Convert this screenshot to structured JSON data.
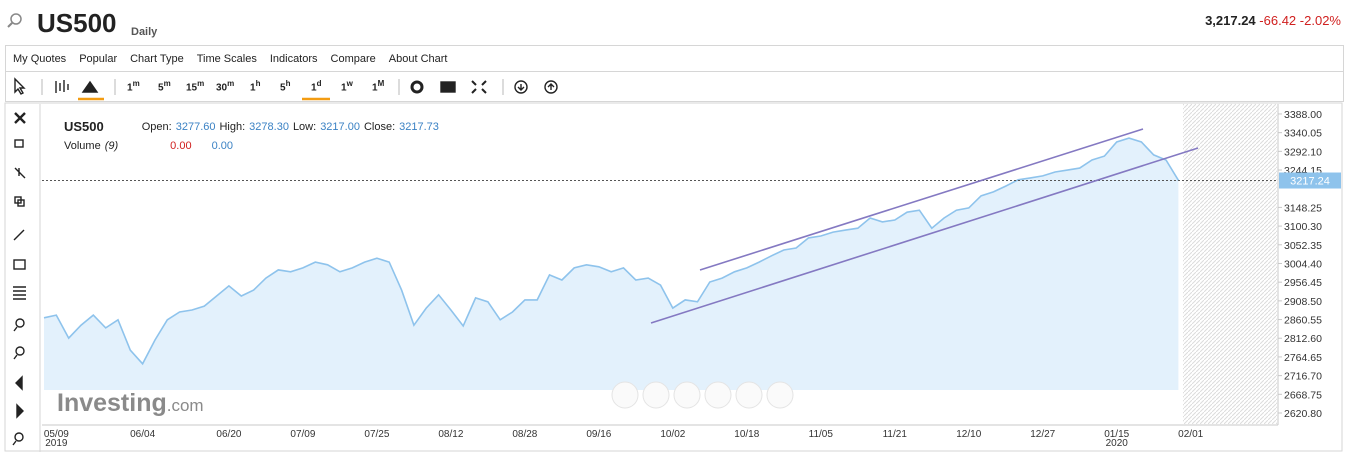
{
  "header": {
    "symbol": "US500",
    "interval": "Daily",
    "price": "3,217.24",
    "change": "-66.42",
    "change_pct": "-2.02%"
  },
  "menu": [
    "My Quotes",
    "Popular",
    "Chart Type",
    "Time Scales",
    "Indicators",
    "Compare",
    "About Chart"
  ],
  "toolbar": {
    "intervals": [
      {
        "n": "1",
        "u": "m"
      },
      {
        "n": "5",
        "u": "m"
      },
      {
        "n": "15",
        "u": "m"
      },
      {
        "n": "30",
        "u": "m"
      },
      {
        "n": "1",
        "u": "h"
      },
      {
        "n": "5",
        "u": "h"
      },
      {
        "n": "1",
        "u": "d"
      },
      {
        "n": "1",
        "u": "w"
      },
      {
        "n": "1",
        "u": "M"
      }
    ]
  },
  "info": {
    "symbol": "US500",
    "open_label": "Open:",
    "open": "3277.60",
    "high_label": "High:",
    "high": "3278.30",
    "low_label": "Low:",
    "low": "3217.00",
    "close_label": "Close:",
    "close": "3217.73",
    "volume_label": "Volume",
    "volume_period": "(9)",
    "volume_change": "0.00",
    "volume_value": "0.00"
  },
  "watermark": {
    "brand": "Investing",
    "suffix": ".com"
  },
  "chart_data": {
    "type": "area",
    "color": "#8ec3ec",
    "fill": "#e3f1fc",
    "categories": [
      null,
      "05/09",
      null,
      null,
      null,
      null,
      null,
      null,
      "06/04",
      null,
      null,
      null,
      null,
      null,
      null,
      "06/20",
      null,
      null,
      null,
      null,
      null,
      "07/09",
      null,
      null,
      null,
      null,
      null,
      "07/25",
      null,
      null,
      null,
      null,
      null,
      "08/12",
      null,
      null,
      null,
      null,
      null,
      "08/28",
      null,
      null,
      null,
      null,
      null,
      "09/16",
      null,
      null,
      null,
      null,
      null,
      "10/02",
      null,
      null,
      null,
      null,
      null,
      "10/18",
      null,
      null,
      null,
      null,
      null,
      "11/05",
      null,
      null,
      null,
      null,
      null,
      "11/21",
      null,
      null,
      null,
      null,
      null,
      "12/10",
      null,
      null,
      null,
      null,
      null,
      "12/27",
      null,
      null,
      null,
      null,
      null,
      "01/15",
      null,
      null,
      null,
      null,
      null,
      "02/01"
    ],
    "category_years": [
      null,
      "2019",
      null,
      null,
      null,
      null,
      null,
      null,
      null,
      null,
      null,
      null,
      null,
      null,
      null,
      null,
      null,
      null,
      null,
      null,
      null,
      null,
      null,
      null,
      null,
      null,
      null,
      null,
      null,
      null,
      null,
      null,
      null,
      null,
      null,
      null,
      null,
      null,
      null,
      null,
      null,
      null,
      null,
      null,
      null,
      null,
      null,
      null,
      null,
      null,
      null,
      null,
      null,
      null,
      null,
      null,
      null,
      null,
      null,
      null,
      null,
      null,
      null,
      null,
      null,
      null,
      null,
      null,
      null,
      null,
      null,
      null,
      null,
      null,
      null,
      null,
      null,
      null,
      null,
      null,
      null,
      null,
      null,
      null,
      null,
      null,
      null,
      "2020",
      null,
      null,
      null,
      null,
      null,
      null
    ],
    "values": [
      2865,
      2872,
      2813,
      2846,
      2872,
      2839,
      2860,
      2782,
      2747,
      2808,
      2860,
      2880,
      2885,
      2895,
      2921,
      2947,
      2921,
      2936,
      2967,
      2988,
      2983,
      2993,
      3008,
      3001,
      2983,
      2993,
      3008,
      3018,
      3008,
      2936,
      2846,
      2890,
      2924,
      2885,
      2844,
      2916,
      2906,
      2860,
      2880,
      2911,
      2911,
      2975,
      2962,
      2993,
      3001,
      2996,
      2983,
      2993,
      2962,
      2967,
      2949,
      2890,
      2911,
      2906,
      2957,
      2967,
      2983,
      2993,
      3008,
      3024,
      3039,
      3044,
      3070,
      3075,
      3085,
      3090,
      3095,
      3121,
      3111,
      3116,
      3136,
      3141,
      3095,
      3121,
      3141,
      3147,
      3178,
      3188,
      3203,
      3219,
      3224,
      3229,
      3239,
      3244,
      3249,
      3270,
      3280,
      3316,
      3326,
      3316,
      3283,
      3270,
      3217.73,
      null
    ],
    "ylim": [
      2590,
      3411
    ],
    "yticks": [
      {
        "value": 3388,
        "label": "3388.00"
      },
      3340.05,
      {
        "value": 3292.1,
        "label": "3292.10"
      },
      3244.15,
      3148.25,
      {
        "value": 3100.3,
        "label": "3100.30"
      },
      3052.35,
      {
        "value": 3004.4,
        "label": "3004.40"
      },
      2956.45,
      {
        "value": 2908.5,
        "label": "2908.50"
      },
      2860.55,
      {
        "value": 2812.6,
        "label": "2812.60"
      },
      2764.65,
      {
        "value": 2716.7,
        "label": "2716.70"
      },
      2668.75,
      {
        "value": 2620.8,
        "label": "2620.80"
      }
    ],
    "last_price": {
      "value": 3217.24,
      "label": "3217.24"
    },
    "grid": false
  }
}
